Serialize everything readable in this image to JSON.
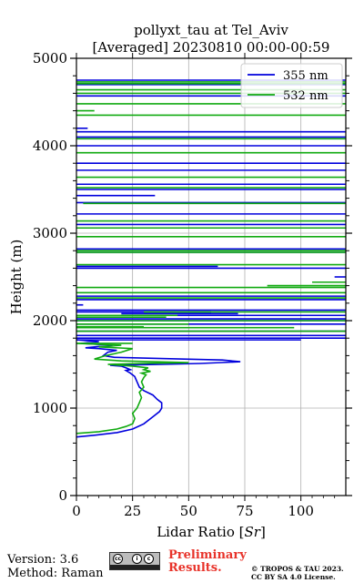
{
  "chart_data": {
    "type": "line",
    "title": "pollyxt_tau at Tel_Aviv",
    "subtitle": "[Averaged] 20230810 00:00-00:59",
    "xlabel": "Lidar Ratio [",
    "xlabel_symbol": "Sr",
    "xlabel_suffix": "]",
    "ylabel": "Height (m)",
    "xlim": [
      0,
      120
    ],
    "ylim": [
      0,
      5000
    ],
    "x_ticks": [
      "0",
      "25",
      "50",
      "75",
      "100"
    ],
    "x_tick_values": [
      0,
      25,
      50,
      75,
      100
    ],
    "y_ticks": [
      "0",
      "1000",
      "2000",
      "3000",
      "4000",
      "5000"
    ],
    "y_tick_values": [
      0,
      1000,
      2000,
      3000,
      4000,
      5000
    ],
    "grid": true,
    "legend_placement": "top-right",
    "series": [
      {
        "name": "355 nm",
        "color": "#0000dd",
        "profile": [
          [
            0,
            670
          ],
          [
            8,
            690
          ],
          [
            18,
            720
          ],
          [
            25,
            760
          ],
          [
            30,
            820
          ],
          [
            34,
            900
          ],
          [
            37,
            960
          ],
          [
            38,
            1000
          ],
          [
            38,
            1060
          ],
          [
            36,
            1100
          ],
          [
            34,
            1150
          ],
          [
            30,
            1200
          ],
          [
            28,
            1240
          ],
          [
            27,
            1300
          ],
          [
            26,
            1360
          ],
          [
            24,
            1400
          ],
          [
            22,
            1430
          ],
          [
            24,
            1440
          ],
          [
            22,
            1460
          ],
          [
            20,
            1480
          ],
          [
            15,
            1490
          ],
          [
            38,
            1500
          ],
          [
            55,
            1510
          ],
          [
            73,
            1530
          ],
          [
            65,
            1550
          ],
          [
            48,
            1560
          ],
          [
            17,
            1580
          ],
          [
            12,
            1600
          ],
          [
            14,
            1640
          ],
          [
            18,
            1660
          ],
          [
            10,
            1680
          ],
          [
            4,
            1690
          ],
          [
            16,
            1720
          ],
          [
            2,
            1740
          ],
          [
            10,
            1760
          ],
          [
            0,
            1780
          ]
        ],
        "spikes": [
          [
            0,
            100,
            1780
          ],
          [
            0,
            120,
            1800
          ],
          [
            0,
            120,
            1830
          ],
          [
            0,
            120,
            1880
          ],
          [
            0,
            120,
            1960
          ],
          [
            0,
            120,
            2000
          ],
          [
            0,
            120,
            2020
          ],
          [
            10,
            120,
            2060
          ],
          [
            20,
            72,
            2080
          ],
          [
            0,
            60,
            2100
          ],
          [
            0,
            120,
            2120
          ],
          [
            0,
            3,
            2180
          ],
          [
            0,
            120,
            2240
          ],
          [
            0,
            120,
            2280
          ],
          [
            115,
            120,
            2500
          ],
          [
            0,
            63,
            2620
          ],
          [
            0,
            120,
            2600
          ],
          [
            0,
            120,
            2780
          ],
          [
            0,
            120,
            2820
          ],
          [
            0,
            120,
            3100
          ],
          [
            0,
            120,
            3220
          ],
          [
            0,
            120,
            3350
          ],
          [
            0,
            35,
            3430
          ],
          [
            0,
            120,
            3500
          ],
          [
            0,
            120,
            3560
          ],
          [
            0,
            120,
            3720
          ],
          [
            0,
            120,
            3800
          ],
          [
            0,
            120,
            4000
          ],
          [
            0,
            120,
            4100
          ],
          [
            0,
            5,
            4200
          ],
          [
            0,
            120,
            4160
          ],
          [
            0,
            120,
            4570
          ],
          [
            0,
            120,
            4700
          ],
          [
            0,
            120,
            4750
          ]
        ]
      },
      {
        "name": "532 nm",
        "color": "#11aa11",
        "profile": [
          [
            0,
            710
          ],
          [
            10,
            730
          ],
          [
            18,
            760
          ],
          [
            22,
            790
          ],
          [
            25,
            820
          ],
          [
            26,
            880
          ],
          [
            25,
            940
          ],
          [
            27,
            1000
          ],
          [
            28,
            1060
          ],
          [
            29,
            1120
          ],
          [
            28,
            1180
          ],
          [
            30,
            1240
          ],
          [
            29,
            1300
          ],
          [
            30,
            1350
          ],
          [
            31,
            1380
          ],
          [
            29,
            1400
          ],
          [
            33,
            1420
          ],
          [
            30,
            1440
          ],
          [
            32,
            1460
          ],
          [
            25,
            1480
          ],
          [
            14,
            1500
          ],
          [
            28,
            1510
          ],
          [
            50,
            1520
          ],
          [
            20,
            1540
          ],
          [
            8,
            1560
          ],
          [
            13,
            1600
          ],
          [
            20,
            1640
          ],
          [
            25,
            1680
          ],
          [
            10,
            1700
          ],
          [
            20,
            1720
          ],
          [
            0,
            1740
          ]
        ],
        "spikes": [
          [
            0,
            25,
            1740
          ],
          [
            0,
            120,
            1880
          ],
          [
            0,
            30,
            1930
          ],
          [
            0,
            97,
            1920
          ],
          [
            0,
            50,
            1960
          ],
          [
            0,
            120,
            2000
          ],
          [
            0,
            40,
            2040
          ],
          [
            0,
            45,
            2060
          ],
          [
            30,
            120,
            2100
          ],
          [
            0,
            120,
            2260
          ],
          [
            0,
            120,
            2320
          ],
          [
            85,
            120,
            2400
          ],
          [
            0,
            120,
            2380
          ],
          [
            105,
            120,
            2440
          ],
          [
            0,
            120,
            2640
          ],
          [
            0,
            120,
            2780
          ],
          [
            0,
            120,
            2800
          ],
          [
            0,
            120,
            2960
          ],
          [
            0,
            120,
            3060
          ],
          [
            0,
            120,
            3140
          ],
          [
            3,
            120,
            3340
          ],
          [
            0,
            120,
            3520
          ],
          [
            0,
            120,
            3640
          ],
          [
            0,
            120,
            3920
          ],
          [
            0,
            120,
            4080
          ],
          [
            0,
            120,
            4350
          ],
          [
            0,
            8,
            4400
          ],
          [
            0,
            120,
            4480
          ],
          [
            0,
            120,
            4600
          ],
          [
            0,
            120,
            4640
          ],
          [
            0,
            120,
            4710
          ],
          [
            0,
            120,
            4730
          ]
        ]
      }
    ]
  },
  "footer": {
    "version": "Version: 3.6",
    "method": "Method: Raman",
    "preliminary_line1": "Preliminary",
    "preliminary_line2": "Results.",
    "copyright_line1": "© TROPOS & TAU 2023.",
    "copyright_line2": "CC BY SA 4.0 License.",
    "license_badge": "cc by sa",
    "license_icons": [
      "cc-icon",
      "by-icon",
      "sa-icon"
    ],
    "preliminary_color": "#e8332a"
  }
}
